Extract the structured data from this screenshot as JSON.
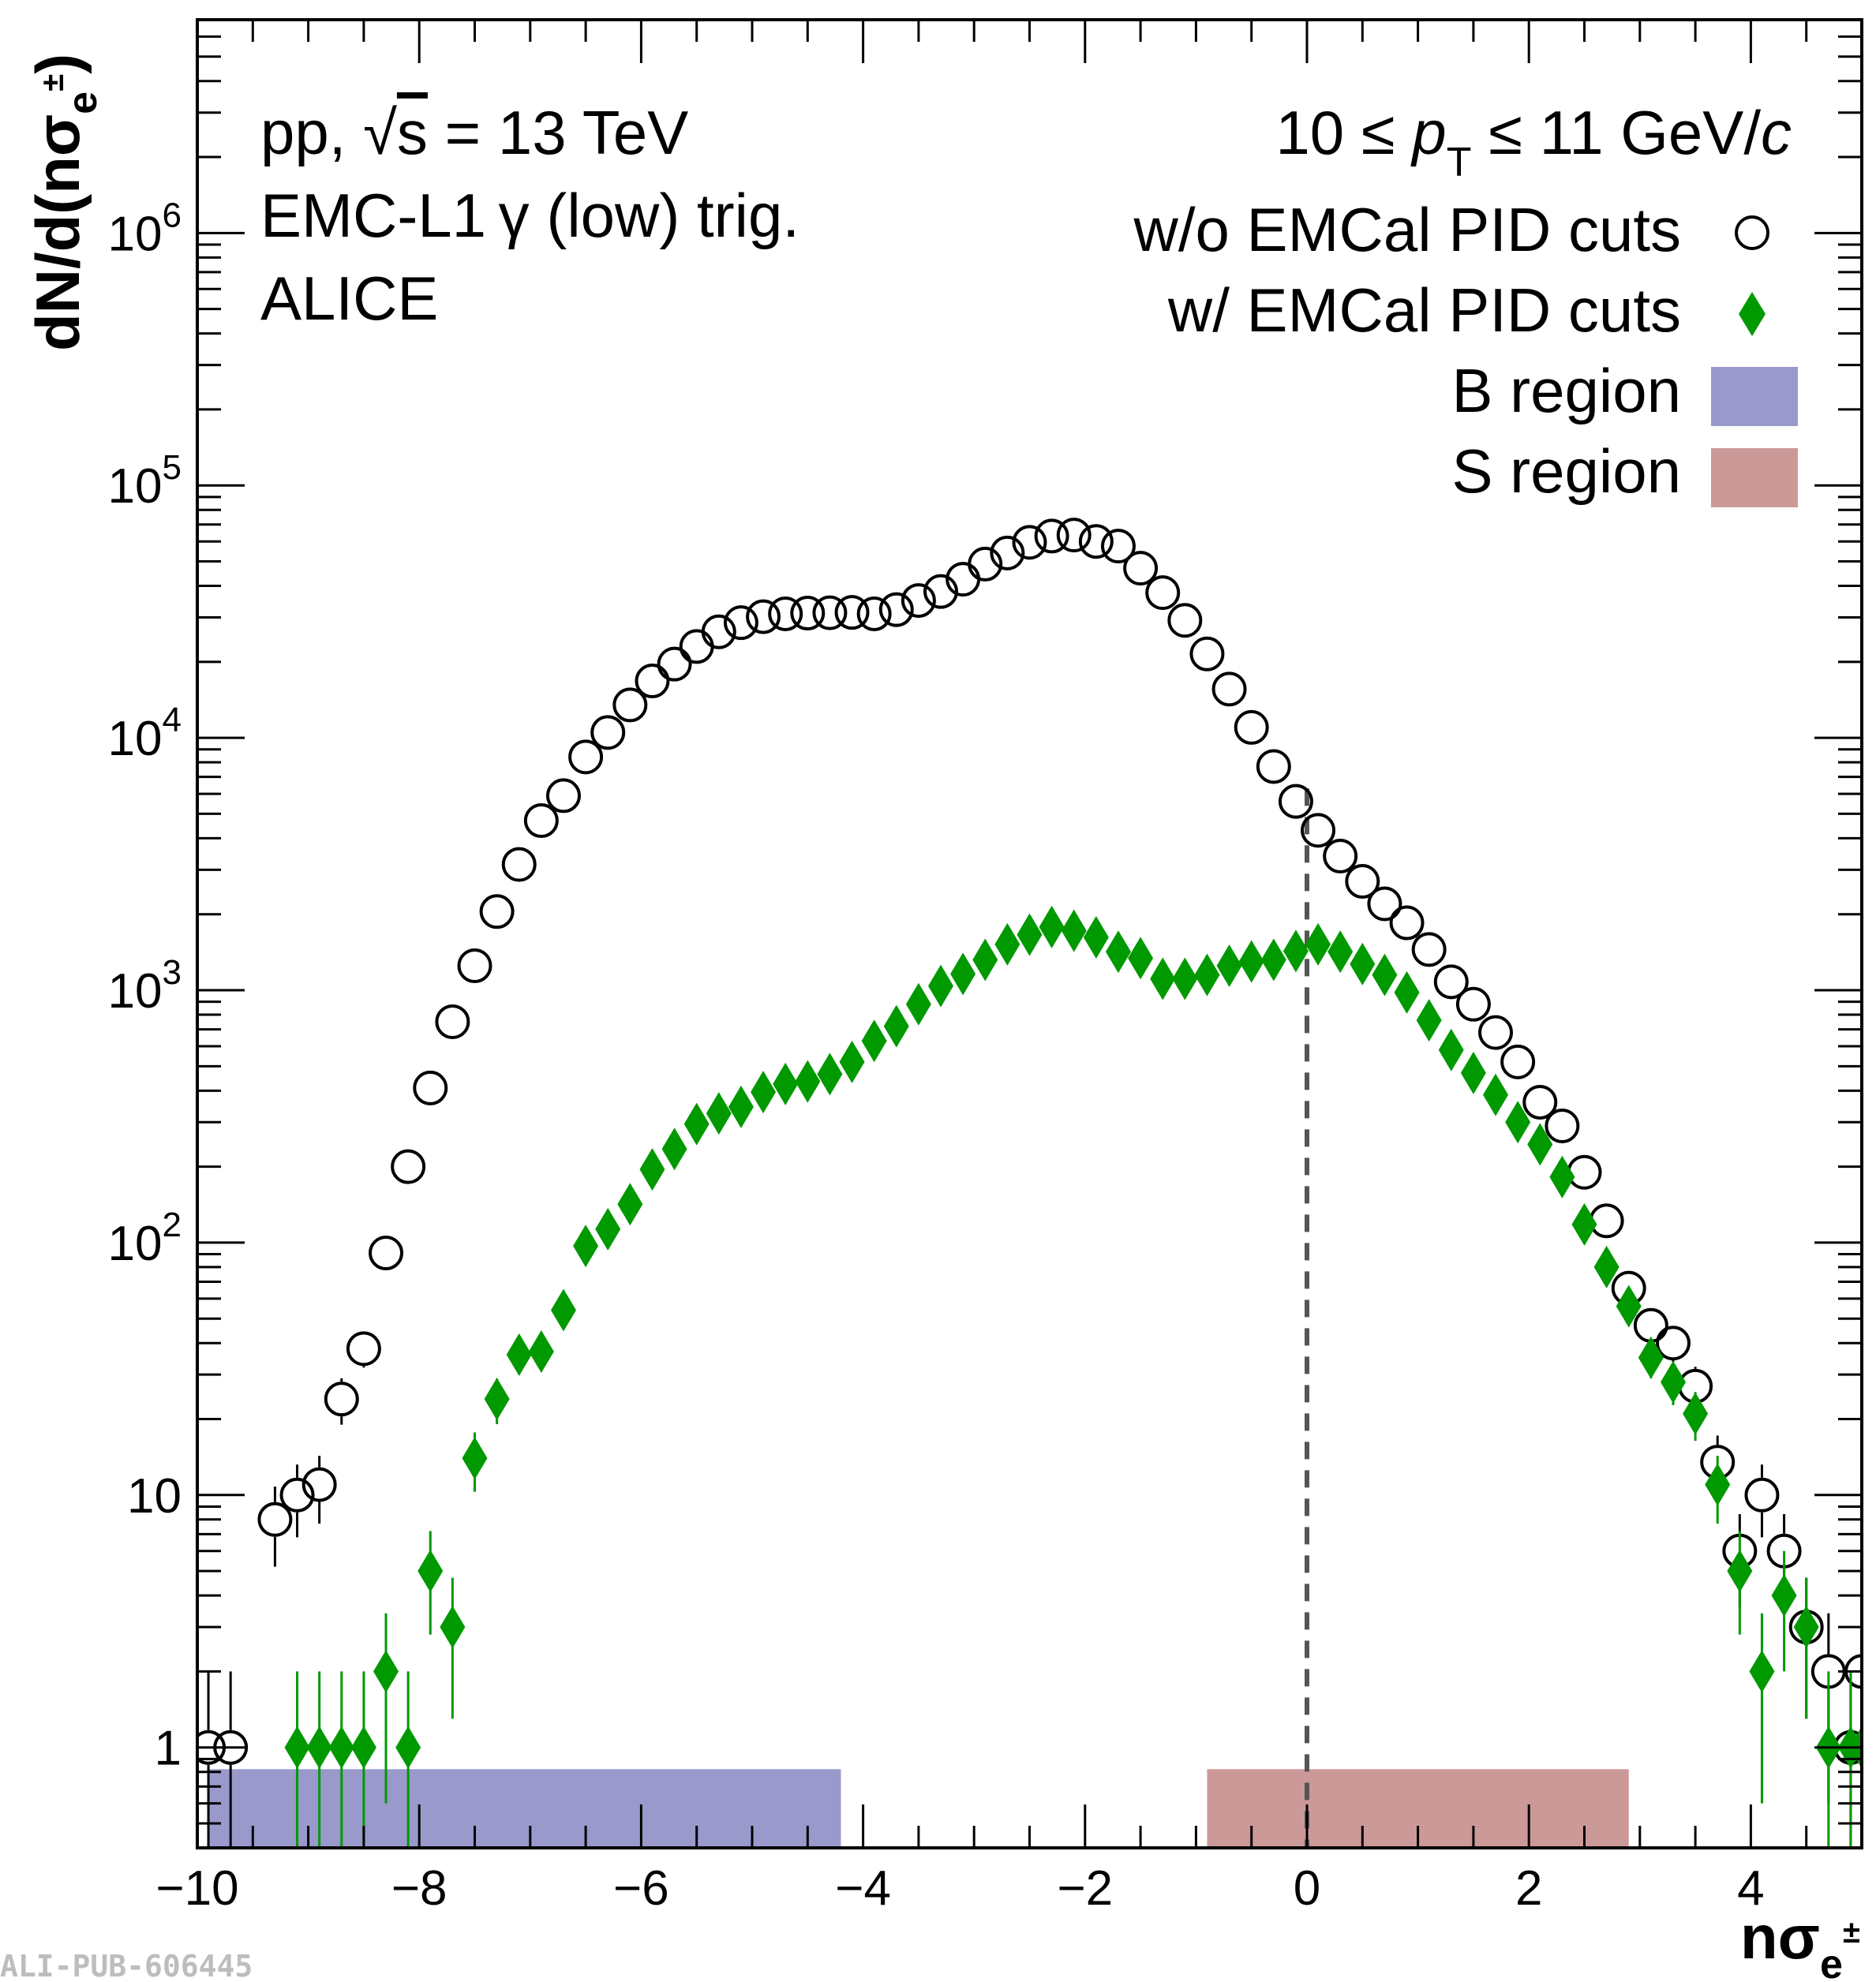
{
  "chart_data": {
    "type": "scatter",
    "y_scale": "log",
    "xlim": [
      -10,
      5
    ],
    "ylim": [
      0.4,
      7000000
    ],
    "x_ticks": [
      -10,
      -8,
      -6,
      -4,
      -2,
      0,
      2,
      4
    ],
    "x_tick_labels": [
      "−10",
      "−8",
      "−6",
      "−4",
      "−2",
      "0",
      "2",
      "4"
    ],
    "y_ticks": [
      1,
      10,
      100,
      1000,
      10000,
      100000,
      1000000
    ],
    "y_tick_mantissa": [
      "1",
      "10",
      "10",
      "10",
      "10",
      "10",
      "10"
    ],
    "y_tick_exponent": [
      "",
      "",
      "2",
      "3",
      "4",
      "5",
      "6"
    ],
    "xlabel_main": "nσ",
    "xlabel_sub": "e",
    "xlabel_sup": "±",
    "ylabel_main": "dN/d(nσ",
    "ylabel_sub": "e",
    "ylabel_sup": "±",
    "ylabel_close": ")",
    "annotations": {
      "line1_pp": "pp, ",
      "line1_sqrt": "√",
      "line1_s": "s",
      "line1_rest": " = 13 TeV",
      "line2": "EMC-L1 γ (low) trig.",
      "line3": "ALICE",
      "pt_range_left": "10 ≤ ",
      "pt_range_p": "p",
      "pt_range_sub": "T",
      "pt_range_right": " ≤ 11 GeV/",
      "pt_range_c": "c"
    },
    "series": [
      {
        "name": "w/o EMCal PID cuts",
        "marker": "open-circle",
        "color": "#000000",
        "points": [
          [
            -9.9,
            1.0,
            1.0
          ],
          [
            -9.7,
            1.0,
            1.0
          ],
          [
            -9.3,
            8,
            2.8
          ],
          [
            -9.1,
            10,
            3.2
          ],
          [
            -8.9,
            11,
            3.3
          ],
          [
            -8.7,
            24,
            5
          ],
          [
            -8.5,
            38,
            6
          ],
          [
            -8.3,
            91,
            9.5
          ],
          [
            -8.1,
            200,
            14
          ],
          [
            -7.9,
            410,
            20
          ],
          [
            -7.7,
            750,
            27
          ],
          [
            -7.5,
            1250,
            35
          ],
          [
            -7.3,
            2050,
            45
          ],
          [
            -7.1,
            3150,
            56
          ],
          [
            -6.9,
            4700,
            69
          ],
          [
            -6.7,
            5900,
            77
          ],
          [
            -6.5,
            8400,
            92
          ],
          [
            -6.3,
            10500,
            100
          ],
          [
            -6.1,
            13500,
            116
          ],
          [
            -5.9,
            16800,
            130
          ],
          [
            -5.7,
            19600,
            140
          ],
          [
            -5.5,
            23000,
            150
          ],
          [
            -5.3,
            26300,
            162
          ],
          [
            -5.1,
            28600,
            170
          ],
          [
            -4.9,
            30200,
            174
          ],
          [
            -4.7,
            31000,
            176
          ],
          [
            -4.5,
            31200,
            177
          ],
          [
            -4.3,
            31300,
            177
          ],
          [
            -4.1,
            31400,
            177
          ],
          [
            -3.9,
            31000,
            176
          ],
          [
            -3.7,
            32200,
            180
          ],
          [
            -3.5,
            35000,
            187
          ],
          [
            -3.3,
            38000,
            195
          ],
          [
            -3.1,
            42500,
            206
          ],
          [
            -2.9,
            48800,
            221
          ],
          [
            -2.7,
            54000,
            232
          ],
          [
            -2.5,
            59500,
            244
          ],
          [
            -2.3,
            63000,
            251
          ],
          [
            -2.1,
            63600,
            252
          ],
          [
            -1.9,
            60000,
            245
          ],
          [
            -1.7,
            57500,
            240
          ],
          [
            -1.5,
            47000,
            217
          ],
          [
            -1.3,
            37600,
            194
          ],
          [
            -1.1,
            29200,
            171
          ],
          [
            -0.9,
            21500,
            147
          ],
          [
            -0.7,
            15600,
            125
          ],
          [
            -0.5,
            11000,
            105
          ],
          [
            -0.3,
            7700,
            88
          ],
          [
            -0.1,
            5600,
            75
          ],
          [
            0.1,
            4300,
            66
          ],
          [
            0.3,
            3400,
            58
          ],
          [
            0.5,
            2700,
            52
          ],
          [
            0.7,
            2200,
            47
          ],
          [
            0.9,
            1850,
            43
          ],
          [
            1.1,
            1450,
            38
          ],
          [
            1.3,
            1080,
            33
          ],
          [
            1.5,
            880,
            30
          ],
          [
            1.7,
            680,
            26
          ],
          [
            1.9,
            520,
            23
          ],
          [
            2.1,
            360,
            19
          ],
          [
            2.3,
            290,
            17
          ],
          [
            2.5,
            190,
            14
          ],
          [
            2.7,
            122,
            11
          ],
          [
            2.9,
            66,
            8
          ],
          [
            3.1,
            47,
            7
          ],
          [
            3.3,
            40,
            6.3
          ],
          [
            3.5,
            27,
            5.2
          ],
          [
            3.7,
            13.5,
            3.7
          ],
          [
            3.9,
            6.0,
            2.4
          ],
          [
            4.1,
            10,
            3.2
          ],
          [
            4.3,
            6.0,
            2.4
          ],
          [
            4.5,
            3.0,
            1.7
          ],
          [
            4.7,
            2.0,
            1.4
          ],
          [
            4.9,
            1.0,
            1.0
          ],
          [
            5.0,
            2.0,
            1.4
          ]
        ]
      },
      {
        "name": "w/ EMCal PID cuts",
        "marker": "filled-diamond",
        "color": "#009900",
        "points": [
          [
            -9.1,
            1.0,
            1.0
          ],
          [
            -8.9,
            1.0,
            1.0
          ],
          [
            -8.7,
            1.0,
            1.0
          ],
          [
            -8.5,
            1.0,
            1.0
          ],
          [
            -8.3,
            2.0,
            1.4
          ],
          [
            -8.1,
            1.0,
            1.0
          ],
          [
            -7.9,
            5.0,
            2.2
          ],
          [
            -7.7,
            3.0,
            1.7
          ],
          [
            -7.5,
            14,
            3.7
          ],
          [
            -7.3,
            24,
            4.9
          ],
          [
            -7.1,
            36,
            6
          ],
          [
            -6.9,
            37,
            6
          ],
          [
            -6.7,
            54,
            7.3
          ],
          [
            -6.5,
            97,
            9.8
          ],
          [
            -6.3,
            113,
            10.6
          ],
          [
            -6.1,
            142,
            12
          ],
          [
            -5.9,
            195,
            14
          ],
          [
            -5.7,
            235,
            15
          ],
          [
            -5.5,
            295,
            17
          ],
          [
            -5.3,
            325,
            18
          ],
          [
            -5.1,
            345,
            18.6
          ],
          [
            -4.9,
            395,
            20
          ],
          [
            -4.7,
            425,
            21
          ],
          [
            -4.5,
            435,
            21
          ],
          [
            -4.3,
            465,
            22
          ],
          [
            -4.1,
            520,
            23
          ],
          [
            -3.9,
            630,
            25
          ],
          [
            -3.7,
            720,
            27
          ],
          [
            -3.5,
            880,
            30
          ],
          [
            -3.3,
            1040,
            32
          ],
          [
            -3.1,
            1160,
            34
          ],
          [
            -2.9,
            1320,
            36
          ],
          [
            -2.7,
            1520,
            39
          ],
          [
            -2.5,
            1660,
            41
          ],
          [
            -2.3,
            1780,
            42
          ],
          [
            -2.1,
            1720,
            41
          ],
          [
            -1.9,
            1620,
            40
          ],
          [
            -1.7,
            1420,
            38
          ],
          [
            -1.5,
            1340,
            37
          ],
          [
            -1.3,
            1110,
            33
          ],
          [
            -1.1,
            1110,
            33
          ],
          [
            -0.9,
            1150,
            34
          ],
          [
            -0.7,
            1250,
            35
          ],
          [
            -0.5,
            1300,
            36
          ],
          [
            -0.3,
            1320,
            36
          ],
          [
            -0.1,
            1430,
            38
          ],
          [
            0.1,
            1520,
            39
          ],
          [
            0.3,
            1420,
            38
          ],
          [
            0.5,
            1270,
            36
          ],
          [
            0.7,
            1150,
            34
          ],
          [
            0.9,
            980,
            31
          ],
          [
            1.1,
            760,
            28
          ],
          [
            1.3,
            580,
            24
          ],
          [
            1.5,
            470,
            22
          ],
          [
            1.7,
            385,
            20
          ],
          [
            1.9,
            300,
            17
          ],
          [
            2.1,
            245,
            16
          ],
          [
            2.3,
            182,
            13.5
          ],
          [
            2.5,
            118,
            11
          ],
          [
            2.7,
            80,
            9
          ],
          [
            2.9,
            56,
            7.5
          ],
          [
            3.1,
            35,
            6
          ],
          [
            3.3,
            28,
            5.3
          ],
          [
            3.5,
            21,
            4.6
          ],
          [
            3.7,
            11,
            3.3
          ],
          [
            3.9,
            5.0,
            2.2
          ],
          [
            4.1,
            2.0,
            1.4
          ],
          [
            4.3,
            4.0,
            2.0
          ],
          [
            4.5,
            3.0,
            1.7
          ],
          [
            4.7,
            1.0,
            1.0
          ],
          [
            4.9,
            1.0,
            1.0
          ],
          [
            5.0,
            1.0,
            1.0
          ]
        ]
      }
    ],
    "regions": [
      {
        "name": "B region",
        "x_range": [
          -9.9,
          -4.2
        ],
        "y_range": [
          0.4,
          0.82
        ],
        "color": "#9999cc"
      },
      {
        "name": "S region",
        "x_range": [
          -0.9,
          2.9
        ],
        "y_range": [
          0.4,
          0.82
        ],
        "color": "#cc9999"
      }
    ],
    "reference_line": {
      "x": 0,
      "y_max": 6300,
      "style": "dashed",
      "color": "#555555"
    },
    "legend": {
      "placement": "top-right",
      "entries": [
        {
          "label": "w/o EMCal PID cuts",
          "marker": "open-circle"
        },
        {
          "label": "w/ EMCal PID cuts",
          "marker": "filled-diamond"
        },
        {
          "label": "B region",
          "marker": "box"
        },
        {
          "label": "S region",
          "marker": "box"
        }
      ]
    },
    "footer_id": "ALI-PUB-606445"
  }
}
